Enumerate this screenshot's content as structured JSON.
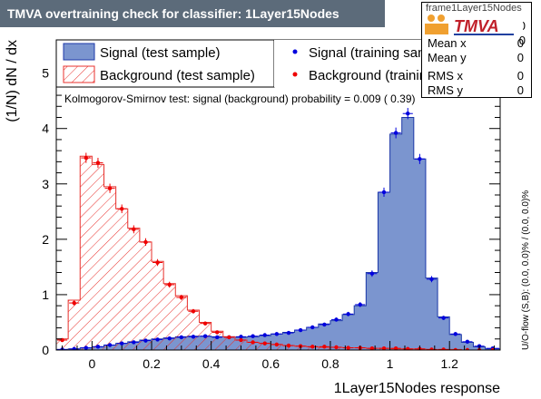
{
  "title": "TMVA overtraining check for classifier: 1Layer15Nodes",
  "stats": {
    "header": "frame1Layer15Nodes",
    "logo_text": "TMVA",
    "rows": [
      {
        "key": "Mean x",
        "value": "0"
      },
      {
        "key": "Mean y",
        "value": "0"
      },
      {
        "key": "RMS x",
        "value": "0"
      },
      {
        "key": "RMS y",
        "value": "0"
      }
    ],
    "top_values": [
      "0",
      "0"
    ]
  },
  "legend": {
    "items": [
      {
        "label": "Signal (test sample)"
      },
      {
        "label": "Signal (training sample)"
      },
      {
        "label": "Background (test sample)"
      },
      {
        "label": "Background (training sample)"
      }
    ]
  },
  "ks_text": "Kolmogorov-Smirnov test: signal (background) probability = 0.009 ( 0.39)",
  "side_label": "U/O-flow (S,B): (0.0, 0.0)% / (0.0, 0.0)%",
  "colors": {
    "signal_fill": "#7b95cf",
    "signal_line": "#1c38a8",
    "signal_marker": "#0000dd",
    "background_line": "#e8302c",
    "background_marker": "#ee0000",
    "title_bg": "#5c6b7a"
  },
  "chart_data": {
    "type": "histogram",
    "xlabel": "1Layer15Nodes response",
    "ylabel": "(1/N) dN / dx",
    "xlim": [
      -0.12,
      1.37
    ],
    "ylim": [
      0,
      5.6
    ],
    "xticks": [
      0,
      0.2,
      0.4,
      0.6,
      0.8,
      1,
      1.2
    ],
    "xtick_labels": [
      "0",
      "0.2",
      "0.4",
      "0.6",
      "0.8",
      "1",
      "1.2"
    ],
    "yticks": [
      0,
      1,
      2,
      3,
      4,
      5
    ],
    "ytick_labels": [
      "0",
      "1",
      "2",
      "3",
      "4",
      "5"
    ],
    "bin_edges": [
      -0.12,
      -0.08,
      -0.04,
      0.0,
      0.04,
      0.08,
      0.12,
      0.16,
      0.2,
      0.24,
      0.28,
      0.32,
      0.36,
      0.4,
      0.44,
      0.48,
      0.52,
      0.56,
      0.6,
      0.64,
      0.68,
      0.72,
      0.76,
      0.8,
      0.84,
      0.88,
      0.92,
      0.96,
      1.0,
      1.04,
      1.08,
      1.12,
      1.16,
      1.2,
      1.24,
      1.28,
      1.32,
      1.37
    ],
    "series": [
      {
        "name": "Signal (test sample)",
        "style": "filled-histogram",
        "values": [
          0.01,
          0.02,
          0.04,
          0.06,
          0.09,
          0.12,
          0.15,
          0.18,
          0.2,
          0.22,
          0.24,
          0.25,
          0.25,
          0.24,
          0.24,
          0.23,
          0.24,
          0.26,
          0.29,
          0.32,
          0.36,
          0.41,
          0.47,
          0.53,
          0.64,
          0.8,
          1.4,
          2.85,
          3.9,
          4.2,
          3.45,
          1.3,
          0.6,
          0.28,
          0.14,
          0.06,
          0.02
        ]
      },
      {
        "name": "Signal (training sample)",
        "style": "markers",
        "values": [
          0.01,
          0.02,
          0.04,
          0.06,
          0.09,
          0.12,
          0.14,
          0.17,
          0.19,
          0.21,
          0.23,
          0.24,
          0.25,
          0.23,
          0.23,
          0.24,
          0.25,
          0.27,
          0.29,
          0.31,
          0.36,
          0.41,
          0.46,
          0.55,
          0.65,
          0.82,
          1.38,
          2.85,
          3.92,
          4.27,
          3.45,
          1.28,
          0.58,
          0.29,
          0.15,
          0.07,
          0.03
        ]
      },
      {
        "name": "Background (test sample)",
        "style": "hatched-histogram",
        "values": [
          0.2,
          0.9,
          3.5,
          3.35,
          2.95,
          2.55,
          2.2,
          1.95,
          1.6,
          1.2,
          0.98,
          0.72,
          0.5,
          0.34,
          0.24,
          0.18,
          0.14,
          0.12,
          0.1,
          0.08,
          0.07,
          0.06,
          0.05,
          0.05,
          0.04,
          0.04,
          0.03,
          0.03,
          0.02,
          0.02,
          0.02,
          0.01,
          0.01,
          0.01,
          0.0,
          0.0,
          0.0
        ]
      },
      {
        "name": "Background (training sample)",
        "style": "markers",
        "values": [
          0.18,
          0.85,
          3.47,
          3.38,
          2.92,
          2.55,
          2.18,
          1.95,
          1.58,
          1.18,
          0.95,
          0.7,
          0.48,
          0.32,
          0.23,
          0.18,
          0.14,
          0.12,
          0.1,
          0.08,
          0.07,
          0.06,
          0.06,
          0.05,
          0.04,
          0.04,
          0.03,
          0.03,
          0.03,
          0.02,
          0.02,
          0.01,
          0.01,
          0.0,
          0.0,
          0.0,
          0.0
        ]
      }
    ]
  }
}
